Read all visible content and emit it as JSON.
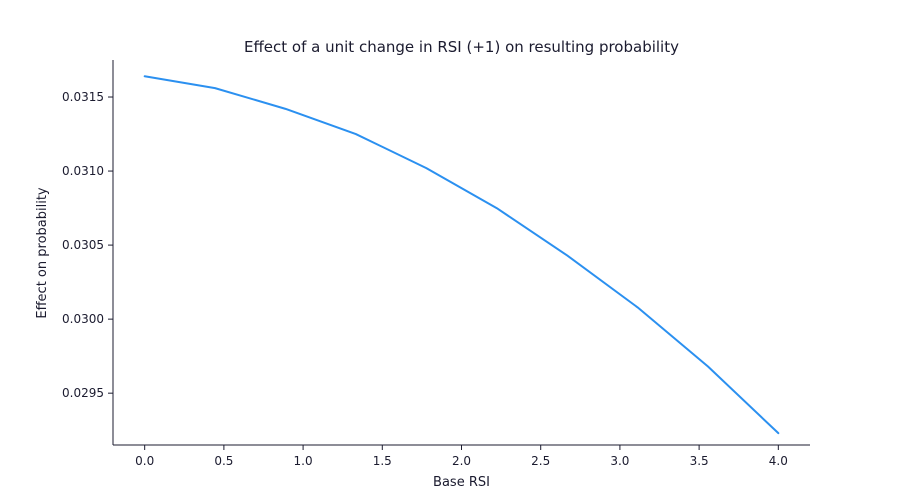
{
  "chart_data": {
    "type": "line",
    "title": "Effect of a unit change in RSI (+1) on resulting probability",
    "xlabel": "Base RSI",
    "ylabel": "Effect on probability",
    "xlim": [
      -0.2,
      4.2
    ],
    "ylim": [
      0.02915,
      0.03175
    ],
    "x_ticks": [
      0.0,
      0.5,
      1.0,
      1.5,
      2.0,
      2.5,
      3.0,
      3.5,
      4.0
    ],
    "x_tick_labels": [
      "0.0",
      "0.5",
      "1.0",
      "1.5",
      "2.0",
      "2.5",
      "3.0",
      "3.5",
      "4.0"
    ],
    "y_ticks": [
      0.0295,
      0.03,
      0.0305,
      0.031,
      0.0315
    ],
    "y_tick_labels": [
      "0.0295",
      "0.0300",
      "0.0305",
      "0.0310",
      "0.0315"
    ],
    "grid": false,
    "legend": "none",
    "series": [
      {
        "color": "#2b90f0",
        "x": [
          0.0,
          0.444,
          0.889,
          1.333,
          1.778,
          2.222,
          2.667,
          3.111,
          3.556,
          4.0
        ],
        "y": [
          0.03164,
          0.03156,
          0.03142,
          0.03125,
          0.03102,
          0.03075,
          0.03043,
          0.03008,
          0.02968,
          0.02923
        ]
      }
    ]
  }
}
